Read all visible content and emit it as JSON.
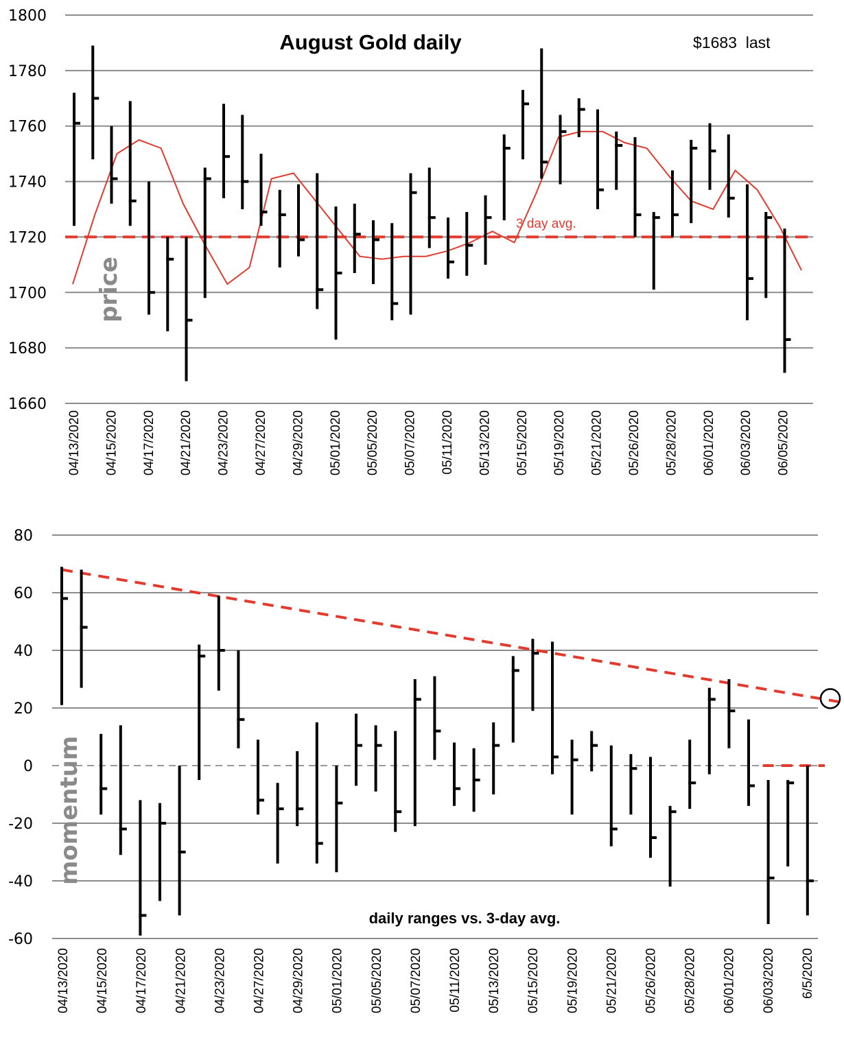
{
  "chart_data": [
    {
      "type": "ohlc-bar",
      "title": "August Gold daily",
      "annotation_last": "$1683  last",
      "ylabel": "price",
      "ylim": [
        1660,
        1800
      ],
      "yticks": [
        1660,
        1680,
        1700,
        1720,
        1740,
        1760,
        1780,
        1800
      ],
      "grid": true,
      "xtick_labels": [
        "04/13/2020",
        "04/15/2020",
        "04/17/2020",
        "04/21/2020",
        "04/23/2020",
        "04/27/2020",
        "04/29/2020",
        "05/01/2020",
        "05/05/2020",
        "05/07/2020",
        "05/11/2020",
        "05/13/2020",
        "05/15/2020",
        "05/19/2020",
        "05/21/2020",
        "05/26/2020",
        "05/28/2020",
        "06/01/2020",
        "06/03/2020",
        "06/05/2020"
      ],
      "bars": [
        {
          "high": 1772,
          "low": 1724,
          "close": 1761
        },
        {
          "high": 1789,
          "low": 1748,
          "close": 1770
        },
        {
          "high": 1760,
          "low": 1732,
          "close": 1741
        },
        {
          "high": 1769,
          "low": 1724,
          "close": 1733
        },
        {
          "high": 1740,
          "low": 1692,
          "close": 1700
        },
        {
          "high": 1720,
          "low": 1686,
          "close": 1712
        },
        {
          "high": 1720,
          "low": 1668,
          "close": 1690
        },
        {
          "high": 1745,
          "low": 1698,
          "close": 1741
        },
        {
          "high": 1768,
          "low": 1734,
          "close": 1749
        },
        {
          "high": 1764,
          "low": 1730,
          "close": 1740
        },
        {
          "high": 1750,
          "low": 1724,
          "close": 1729
        },
        {
          "high": 1737,
          "low": 1709,
          "close": 1728
        },
        {
          "high": 1739,
          "low": 1713,
          "close": 1719
        },
        {
          "high": 1743,
          "low": 1694,
          "close": 1701
        },
        {
          "high": 1731,
          "low": 1683,
          "close": 1707
        },
        {
          "high": 1732,
          "low": 1707,
          "close": 1721
        },
        {
          "high": 1726,
          "low": 1703,
          "close": 1719
        },
        {
          "high": 1725,
          "low": 1690,
          "close": 1696
        },
        {
          "high": 1743,
          "low": 1692,
          "close": 1736
        },
        {
          "high": 1745,
          "low": 1716,
          "close": 1727
        },
        {
          "high": 1727,
          "low": 1705,
          "close": 1711
        },
        {
          "high": 1729,
          "low": 1706,
          "close": 1717
        },
        {
          "high": 1735,
          "low": 1710,
          "close": 1727
        },
        {
          "high": 1757,
          "low": 1726,
          "close": 1752
        },
        {
          "high": 1773,
          "low": 1748,
          "close": 1768
        },
        {
          "high": 1788,
          "low": 1741,
          "close": 1747
        },
        {
          "high": 1764,
          "low": 1739,
          "close": 1758
        },
        {
          "high": 1770,
          "low": 1756,
          "close": 1766
        },
        {
          "high": 1766,
          "low": 1730,
          "close": 1737
        },
        {
          "high": 1758,
          "low": 1737,
          "close": 1753
        },
        {
          "high": 1756,
          "low": 1720,
          "close": 1728
        },
        {
          "high": 1729,
          "low": 1701,
          "close": 1727
        },
        {
          "high": 1744,
          "low": 1720,
          "close": 1728
        },
        {
          "high": 1755,
          "low": 1725,
          "close": 1752
        },
        {
          "high": 1761,
          "low": 1737,
          "close": 1751
        },
        {
          "high": 1757,
          "low": 1727,
          "close": 1734
        },
        {
          "high": 1739,
          "low": 1690,
          "close": 1705
        },
        {
          "high": 1729,
          "low": 1698,
          "close": 1727
        },
        {
          "high": 1723,
          "low": 1671,
          "close": 1683
        }
      ],
      "series": [
        {
          "name": "3 day avg.",
          "color": "#e23b2e",
          "values": [
            1703,
            1728,
            1750,
            1755,
            1752,
            1732,
            1717,
            1703,
            1709,
            1741,
            1743,
            1733,
            1723,
            1713,
            1712,
            1713,
            1713,
            1715,
            1718,
            1722,
            1718,
            1736,
            1756,
            1758,
            1758,
            1754,
            1752,
            1742,
            1733,
            1730,
            1744,
            1737,
            1724,
            1708
          ]
        },
        {
          "name": "reference level",
          "color": "#e23b2e",
          "style": "dashed",
          "value": 1720
        }
      ],
      "avg_label": "3 day avg."
    },
    {
      "type": "ohlc-bar",
      "title": "daily ranges vs. 3-day avg.",
      "ylabel": "momentum",
      "ylim": [
        -60,
        80
      ],
      "yticks": [
        -60,
        -40,
        -20,
        0,
        20,
        40,
        60,
        80
      ],
      "grid": true,
      "xtick_labels": [
        "04/13/2020",
        "04/15/2020",
        "04/17/2020",
        "04/21/2020",
        "04/23/2020",
        "04/27/2020",
        "04/29/2020",
        "05/01/2020",
        "05/05/2020",
        "05/07/2020",
        "05/11/2020",
        "05/13/2020",
        "05/15/2020",
        "05/19/2020",
        "05/21/2020",
        "05/26/2020",
        "05/28/2020",
        "06/01/2020",
        "06/03/2020",
        "6/5/2020"
      ],
      "bars": [
        {
          "high": 69,
          "low": 21,
          "close": 58
        },
        {
          "high": 68,
          "low": 27,
          "close": 48
        },
        {
          "high": 11,
          "low": -17,
          "close": -8
        },
        {
          "high": 14,
          "low": -31,
          "close": -22
        },
        {
          "high": -12,
          "low": -59,
          "close": -52
        },
        {
          "high": -13,
          "low": -47,
          "close": -20
        },
        {
          "high": 0,
          "low": -52,
          "close": -30
        },
        {
          "high": 42,
          "low": -5,
          "close": 38
        },
        {
          "high": 59,
          "low": 26,
          "close": 40
        },
        {
          "high": 40,
          "low": 6,
          "close": 16
        },
        {
          "high": 9,
          "low": -17,
          "close": -12
        },
        {
          "high": -6,
          "low": -34,
          "close": -15
        },
        {
          "high": 5,
          "low": -21,
          "close": -15
        },
        {
          "high": 15,
          "low": -34,
          "close": -27
        },
        {
          "high": 0,
          "low": -37,
          "close": -13
        },
        {
          "high": 18,
          "low": -7,
          "close": 7
        },
        {
          "high": 14,
          "low": -9,
          "close": 7
        },
        {
          "high": 12,
          "low": -23,
          "close": -16
        },
        {
          "high": 30,
          "low": -21,
          "close": 23
        },
        {
          "high": 31,
          "low": 2,
          "close": 12
        },
        {
          "high": 8,
          "low": -14,
          "close": -8
        },
        {
          "high": 6,
          "low": -16,
          "close": -5
        },
        {
          "high": 15,
          "low": -10,
          "close": 7
        },
        {
          "high": 38,
          "low": 8,
          "close": 33
        },
        {
          "high": 44,
          "low": 19,
          "close": 39
        },
        {
          "high": 43,
          "low": -3,
          "close": 3
        },
        {
          "high": 9,
          "low": -17,
          "close": 2
        },
        {
          "high": 12,
          "low": -2,
          "close": 7
        },
        {
          "high": 7,
          "low": -28,
          "close": -22
        },
        {
          "high": 4,
          "low": -17,
          "close": -1
        },
        {
          "high": 3,
          "low": -32,
          "close": -25
        },
        {
          "high": -14,
          "low": -42,
          "close": -16
        },
        {
          "high": 9,
          "low": -15,
          "close": -6
        },
        {
          "high": 27,
          "low": -3,
          "close": 23
        },
        {
          "high": 30,
          "low": 6,
          "close": 19
        },
        {
          "high": 16,
          "low": -14,
          "close": -7
        },
        {
          "high": -5,
          "low": -55,
          "close": -39
        },
        {
          "high": -5,
          "low": -35,
          "close": -6
        },
        {
          "high": 0,
          "low": -52,
          "close": -40
        }
      ],
      "series": [
        {
          "name": "declining trendline",
          "color": "#e23b2e",
          "style": "dashed",
          "start_value": 68,
          "end_value": 23
        },
        {
          "name": "zero line segment",
          "color": "#e23b2e",
          "style": "dashed",
          "value": 0,
          "start_index": 36
        },
        {
          "name": "zero baseline",
          "color": "#999999",
          "style": "dashed",
          "value": 0
        }
      ],
      "circled_point_value": 23
    }
  ]
}
